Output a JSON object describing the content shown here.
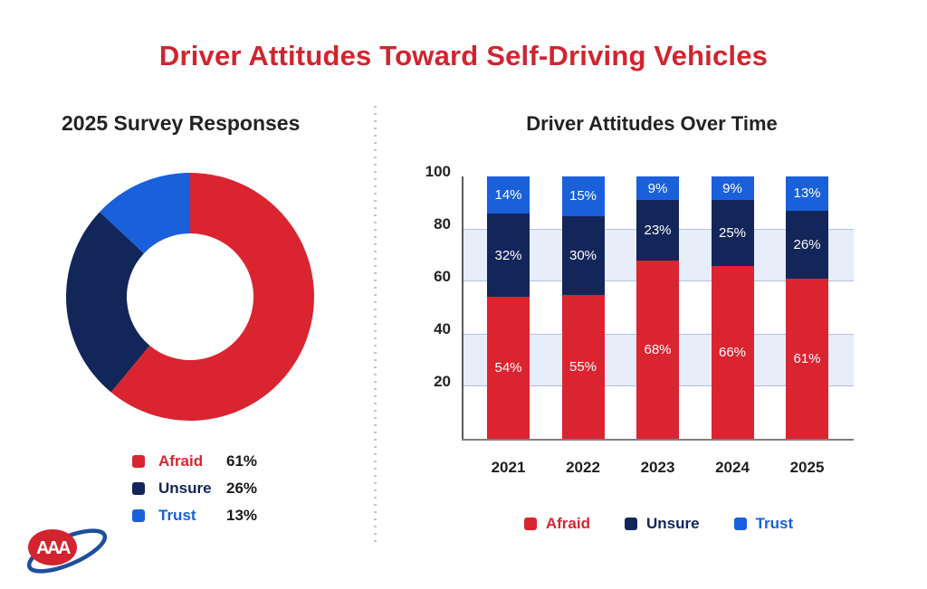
{
  "header": {
    "title": "Driver Attitudes Toward Self-Driving Vehicles",
    "color": "#d2242f"
  },
  "left_panel": {
    "title": "2025 Survey Responses",
    "legend": [
      {
        "label": "Afraid",
        "value": "61%",
        "color": "#da2530"
      },
      {
        "label": "Unsure",
        "value": "26%",
        "color": "#13265a"
      },
      {
        "label": "Trust",
        "value": "13%",
        "color": "#1a60db"
      }
    ]
  },
  "right_panel": {
    "title": "Driver Attitudes Over Time",
    "legend": [
      {
        "label": "Afraid",
        "color": "#da2530"
      },
      {
        "label": "Unsure",
        "color": "#13265a"
      },
      {
        "label": "Trust",
        "color": "#1a60db"
      }
    ]
  },
  "logo": {
    "name": "AAA",
    "text": "AAA",
    "oval_color": "#d2242f",
    "swoosh_color": "#1d4f9e"
  },
  "chart_data": [
    {
      "type": "pie",
      "subtype": "donut",
      "title": "2025 Survey Responses",
      "labels": [
        "Afraid",
        "Unsure",
        "Trust"
      ],
      "values": [
        61,
        26,
        13
      ],
      "colors": [
        "#da2530",
        "#13265a",
        "#1a60db"
      ],
      "start_angle_deg": -90,
      "direction": "clockwise",
      "outer_radius": 137,
      "inner_radius": 70,
      "legend_position": "bottom-left"
    },
    {
      "type": "bar",
      "subtype": "stacked",
      "title": "Driver Attitudes Over Time",
      "categories": [
        "2021",
        "2022",
        "2023",
        "2024",
        "2025"
      ],
      "series": [
        {
          "name": "Afraid",
          "color": "#da2530",
          "values": [
            54,
            55,
            68,
            66,
            61
          ]
        },
        {
          "name": "Unsure",
          "color": "#13265a",
          "values": [
            32,
            30,
            23,
            25,
            26
          ]
        },
        {
          "name": "Trust",
          "color": "#1a60db",
          "values": [
            14,
            15,
            9,
            9,
            13
          ]
        }
      ],
      "value_suffix": "%",
      "label_color": "#ffffff",
      "ylim": [
        0,
        100
      ],
      "yticks": [
        20,
        40,
        60,
        80,
        100
      ],
      "bands": [
        [
          60,
          80
        ],
        [
          20,
          40
        ]
      ],
      "band_fill": "#e7edf9",
      "band_border": "#aec3e4",
      "grid": "bands",
      "legend_position": "bottom"
    }
  ]
}
